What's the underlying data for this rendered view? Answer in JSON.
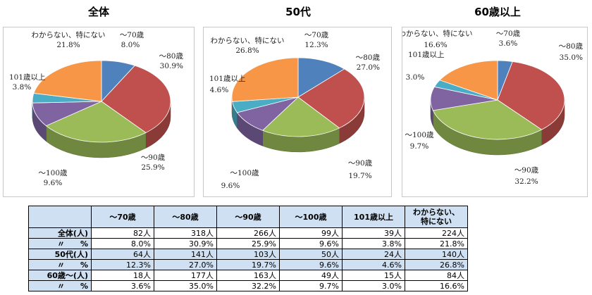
{
  "chart_data": [
    {
      "type": "pie",
      "title": "全体",
      "slices": [
        {
          "category": "～70歳",
          "value": 8.0,
          "label": "8.0%"
        },
        {
          "category": "～80歳",
          "value": 30.9,
          "label": "30.9%"
        },
        {
          "category": "～90歳",
          "value": 25.9,
          "label": "25.9%"
        },
        {
          "category": "～100歳",
          "value": 9.6,
          "label": "9.6%"
        },
        {
          "category": "101歳以上",
          "value": 3.8,
          "label": "3.8%"
        },
        {
          "category": "わからない、特にない",
          "value": 21.8,
          "label": "21.8%"
        }
      ]
    },
    {
      "type": "pie",
      "title": "50代",
      "slices": [
        {
          "category": "～70歳",
          "value": 12.3,
          "label": "12.3%"
        },
        {
          "category": "～80歳",
          "value": 27.0,
          "label": "27.0%"
        },
        {
          "category": "～90歳",
          "value": 19.7,
          "label": "19.7%"
        },
        {
          "category": "～100歳",
          "value": 9.6,
          "label": "9.6%"
        },
        {
          "category": "101歳以上",
          "value": 4.6,
          "label": "4.6%"
        },
        {
          "category": "わからない、特にない",
          "value": 26.8,
          "label": "26.8%"
        }
      ]
    },
    {
      "type": "pie",
      "title": "60歳以上",
      "slices": [
        {
          "category": "～70歳",
          "value": 3.6,
          "label": "3.6%"
        },
        {
          "category": "～80歳",
          "value": 35.0,
          "label": "35.0%"
        },
        {
          "category": "～90歳",
          "value": 32.2,
          "label": "32.2%"
        },
        {
          "category": "～100歳",
          "value": 9.7,
          "label": "9.7%"
        },
        {
          "category": "101歳以上",
          "value": 3.0,
          "label": "3.0%"
        },
        {
          "category": "わからない、特にない",
          "value": 16.6,
          "label": "16.6%"
        }
      ]
    },
    {
      "type": "table",
      "columns": [
        "～70歳",
        "～80歳",
        "～90歳",
        "～100歳",
        "101歳以上",
        "わからない、",
        "特にない"
      ],
      "rows": [
        {
          "label": "全体(人)",
          "cells": [
            "82人",
            "318人",
            "266人",
            "99人",
            "39人",
            "224人"
          ],
          "highlight": false
        },
        {
          "label": "〃　　%",
          "cells": [
            "8.0%",
            "30.9%",
            "25.9%",
            "9.6%",
            "3.8%",
            "21.8%"
          ],
          "highlight": false
        },
        {
          "label": "50代(人)",
          "cells": [
            "64人",
            "141人",
            "103人",
            "50人",
            "24人",
            "140人"
          ],
          "highlight": true
        },
        {
          "label": "〃　　%",
          "cells": [
            "12.3%",
            "27.0%",
            "19.7%",
            "9.6%",
            "4.6%",
            "26.8%"
          ],
          "highlight": true
        },
        {
          "label": "60歳～(人)",
          "cells": [
            "18人",
            "177人",
            "163人",
            "49人",
            "15人",
            "84人"
          ],
          "highlight": false
        },
        {
          "label": "〃　　%",
          "cells": [
            "3.6%",
            "35.0%",
            "32.2%",
            "9.7%",
            "3.0%",
            "16.6%"
          ],
          "highlight": false
        }
      ]
    }
  ],
  "colors": {
    "slice_70": "#4f81bd",
    "slice_80": "#c0504d",
    "slice_90": "#9bbb59",
    "slice_100": "#8064a2",
    "slice_101": "#4bacc6",
    "slice_unknown": "#f79646",
    "table_header": "#cfe0f2"
  }
}
